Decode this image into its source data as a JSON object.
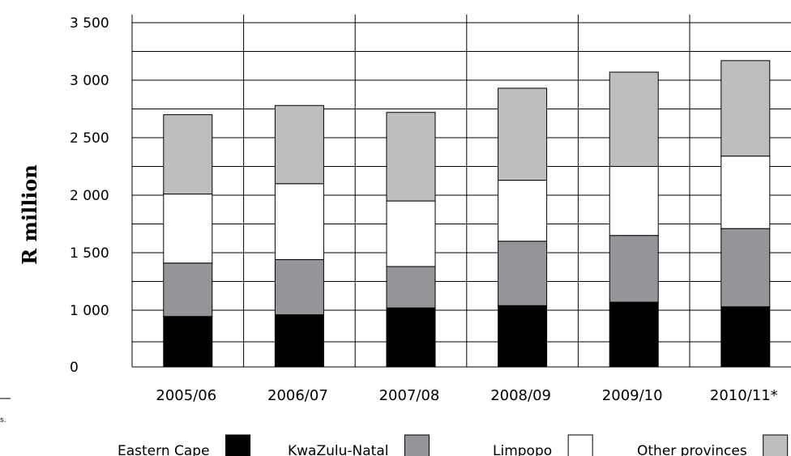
{
  "chart_data": {
    "type": "bar",
    "stacked": true,
    "categories": [
      "2005/06",
      "2006/07",
      "2007/08",
      "2008/09",
      "2009/10",
      "2010/11*"
    ],
    "series": [
      {
        "name": "Eastern Cape",
        "values": [
          890,
          920,
          1020,
          1040,
          1070,
          1030
        ],
        "color": "#000000"
      },
      {
        "name": "KwaZulu-Natal",
        "values": [
          520,
          520,
          360,
          560,
          580,
          680
        ],
        "color": "#939598"
      },
      {
        "name": "Limpopo",
        "values": [
          600,
          660,
          570,
          530,
          600,
          630
        ],
        "color": "#ffffff"
      },
      {
        "name": "Other provinces",
        "values": [
          690,
          680,
          770,
          800,
          820,
          830
        ],
        "color": "#bcbec0"
      }
    ],
    "title": "",
    "xlabel": "",
    "ylabel": "R million",
    "ylim": [
      0,
      3500
    ],
    "yticks": [
      {
        "value": 0,
        "label": "0"
      },
      {
        "value": 1000,
        "label": "1 000"
      },
      {
        "value": 1500,
        "label": "1 500"
      },
      {
        "value": 2000,
        "label": "2 000"
      },
      {
        "value": 2500,
        "label": "2 500"
      },
      {
        "value": 3000,
        "label": "3 000"
      },
      {
        "value": 3500,
        "label": "3 500"
      }
    ],
    "grid": true,
    "legend_position": "bottom"
  },
  "footnote_fragment": "s."
}
